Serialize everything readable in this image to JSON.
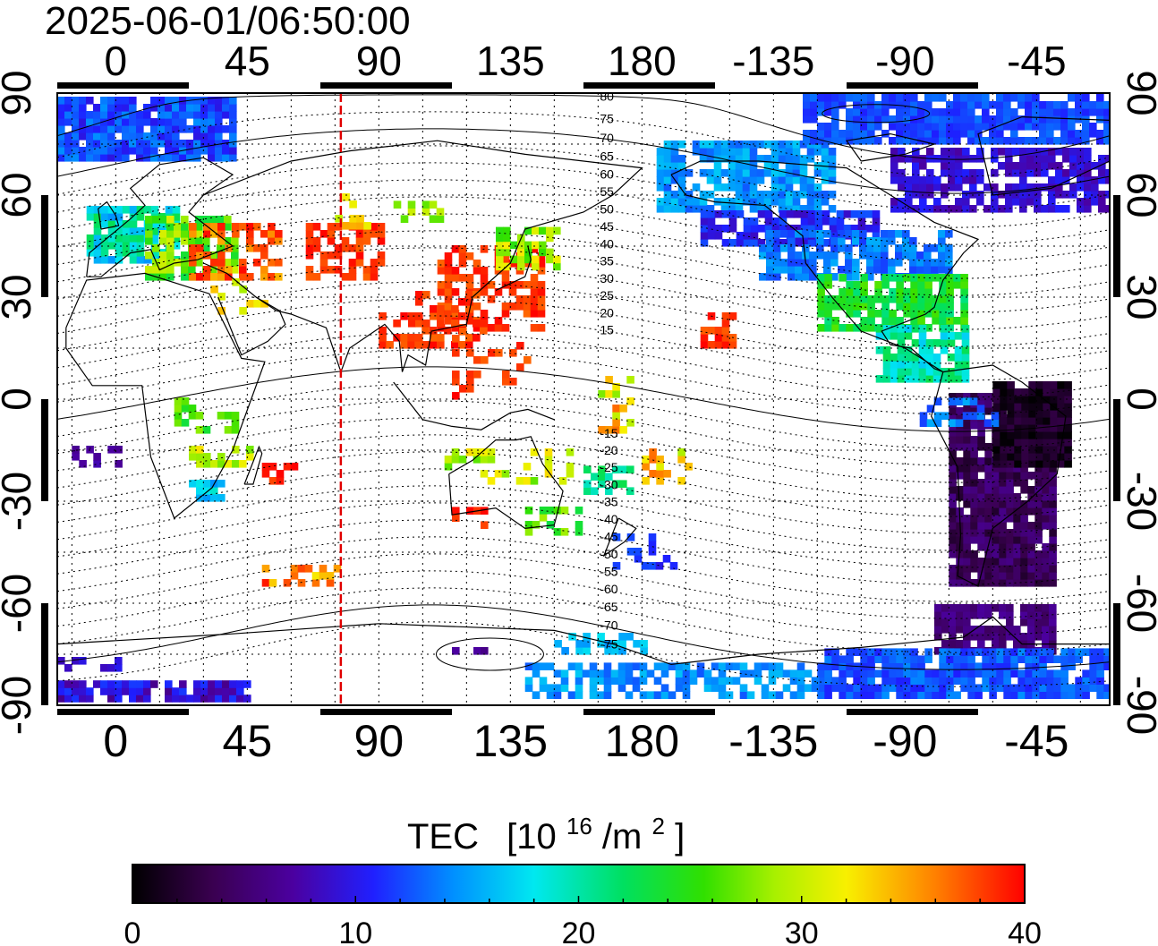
{
  "timestamp": "2025-06-01/06:50:00",
  "map": {
    "top_lon_labels": [
      "0",
      "45",
      "90",
      "135",
      "180",
      "-135",
      "-90",
      "-45"
    ],
    "bottom_lon_labels": [
      "0",
      "45",
      "90",
      "135",
      "180",
      "-135",
      "-90",
      "-45"
    ],
    "left_lat_labels": [
      "90",
      "60",
      "30",
      "0",
      "-30",
      "-60",
      "-90"
    ],
    "right_lat_labels": [
      "90",
      "60",
      "30",
      "0",
      "-30",
      "-60",
      "-90"
    ],
    "lon_range": [
      -20,
      340
    ],
    "lat_range": [
      -90,
      90
    ],
    "marker_longitude": 77,
    "magnetic_latitude_labels": [
      "80",
      "75",
      "70",
      "65",
      "60",
      "55",
      "50",
      "45",
      "40",
      "35",
      "30",
      "25",
      "20",
      "15",
      "-15",
      "-20",
      "-25",
      "-30",
      "-35",
      "-40",
      "-45",
      "-50",
      "-55",
      "-60",
      "-65",
      "-70",
      "-75"
    ]
  },
  "colorbar": {
    "title": "TEC",
    "unit_main": "[10",
    "unit_sup": "16",
    "unit_mid": "/m",
    "unit_sup2": "2",
    "unit_end": "]",
    "tick_labels": [
      "0",
      "10",
      "20",
      "30",
      "40"
    ],
    "range": [
      0,
      40
    ],
    "colors": [
      "#000000",
      "#3a0050",
      "#4b00a0",
      "#1a1aff",
      "#0090ff",
      "#00e8f0",
      "#00e060",
      "#30e000",
      "#a8f000",
      "#f8f000",
      "#ff8000",
      "#ff0000"
    ]
  },
  "colors": {
    "marker_line": "#e00000",
    "frame": "#000000"
  }
}
